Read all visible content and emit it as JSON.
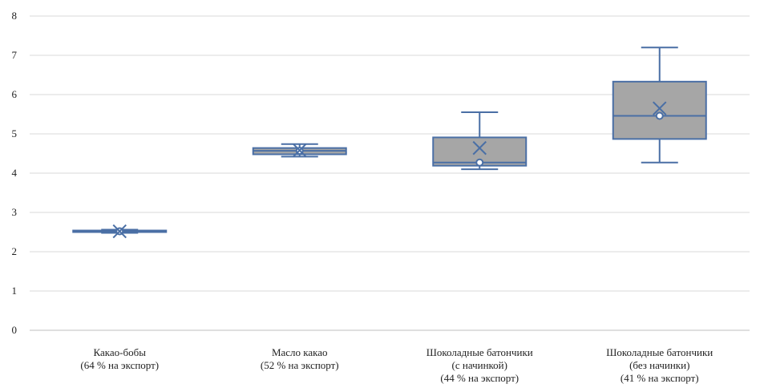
{
  "chart_data": {
    "type": "boxplot",
    "title": "",
    "xlabel": "",
    "ylabel": "",
    "ylim": [
      0,
      8
    ],
    "yticks": [
      0,
      1,
      2,
      3,
      4,
      5,
      6,
      7,
      8
    ],
    "grid": true,
    "legend": "none",
    "colors": {
      "box_fill": "#a6a6a6",
      "stroke": "#4a6fa5",
      "grid": "#d9d9d9"
    },
    "categories": [
      {
        "lines": [
          "Какао-бобы",
          "(64 % на экспорт)"
        ],
        "min": 2.48,
        "q1": 2.5,
        "median": 2.52,
        "q3": 2.54,
        "max": 2.56,
        "mean": 2.52
      },
      {
        "lines": [
          "Масло какао",
          "(52 % на экспорт)"
        ],
        "min": 4.42,
        "q1": 4.48,
        "median": 4.57,
        "q3": 4.64,
        "max": 4.74,
        "mean": 4.58
      },
      {
        "lines": [
          "Шоколадные батончики",
          "(с начинкой)",
          "(44 % на экспорт)"
        ],
        "min": 4.1,
        "q1": 4.19,
        "median": 4.27,
        "q3": 4.91,
        "max": 5.55,
        "mean": 4.64
      },
      {
        "lines": [
          "Шоколадные батончики",
          "(без начинки)",
          "(41 % на экспорт)"
        ],
        "min": 4.27,
        "q1": 4.87,
        "median": 5.46,
        "q3": 6.33,
        "max": 7.2,
        "mean": 5.65
      }
    ]
  }
}
